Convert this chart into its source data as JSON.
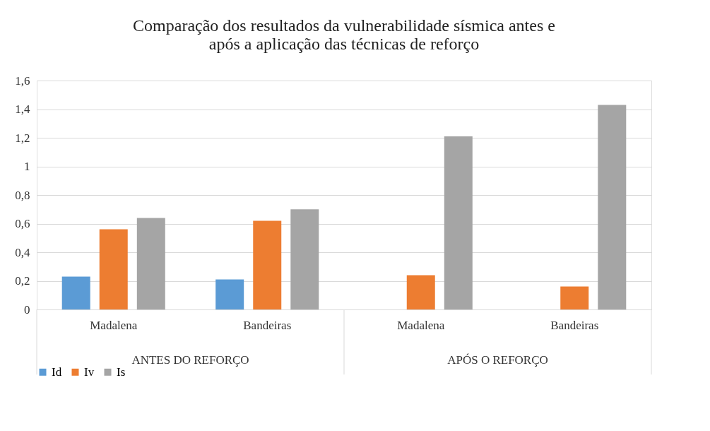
{
  "chart_data": {
    "type": "bar",
    "title": "Comparação dos resultados da vulnerabilidade sísmica antes e\napós a aplicação das técnicas de reforço",
    "categories": [
      "Madalena",
      "Bandeiras",
      "Madalena",
      "Bandeiras"
    ],
    "series": [
      {
        "name": "Id",
        "color": "#5b9bd5",
        "values": [
          0.23,
          0.21,
          null,
          null
        ]
      },
      {
        "name": "Iv",
        "color": "#ed7d31",
        "values": [
          0.56,
          0.62,
          0.24,
          0.16
        ]
      },
      {
        "name": "Is",
        "color": "#a5a5a5",
        "values": [
          0.64,
          0.7,
          1.21,
          1.43
        ]
      }
    ],
    "annotations": [
      "ANTES DO REFORÇO",
      "APÓS O REFORÇO"
    ],
    "ylim": [
      0,
      1.6
    ],
    "yticks": [
      0,
      {
        "value": 0.2,
        "label": "0,2"
      },
      {
        "value": 0.4,
        "label": "0,4"
      },
      {
        "value": 0.6,
        "label": "0,6"
      },
      {
        "value": 0.8,
        "label": "0,8"
      },
      1,
      {
        "value": 1.2,
        "label": "1,2"
      },
      {
        "value": 1.4,
        "label": "1,4"
      },
      {
        "value": 1.6,
        "label": "1,6"
      }
    ],
    "grid": "y",
    "legend": "bottom"
  }
}
